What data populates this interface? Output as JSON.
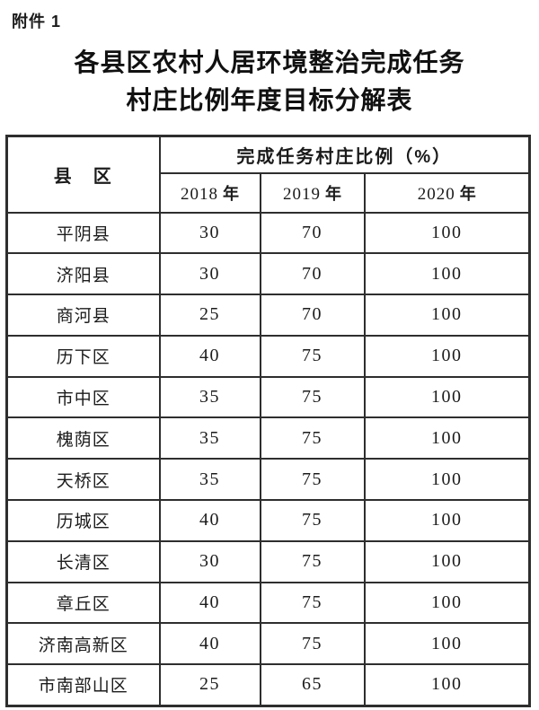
{
  "page": {
    "attachment_label": "附件 1",
    "title_line1": "各县区农村人居环境整治完成任务",
    "title_line2": "村庄比例年度目标分解表"
  },
  "table": {
    "header": {
      "county_label": "县　区",
      "ratio_label": "完成任务村庄比例（%）",
      "years": [
        {
          "num": "2018",
          "unit": "年"
        },
        {
          "num": "2019",
          "unit": "年"
        },
        {
          "num": "2020",
          "unit": "年"
        }
      ]
    },
    "rows": [
      {
        "county": "平阴县",
        "y2018": "30",
        "y2019": "70",
        "y2020": "100"
      },
      {
        "county": "济阳县",
        "y2018": "30",
        "y2019": "70",
        "y2020": "100"
      },
      {
        "county": "商河县",
        "y2018": "25",
        "y2019": "70",
        "y2020": "100"
      },
      {
        "county": "历下区",
        "y2018": "40",
        "y2019": "75",
        "y2020": "100"
      },
      {
        "county": "市中区",
        "y2018": "35",
        "y2019": "75",
        "y2020": "100"
      },
      {
        "county": "槐荫区",
        "y2018": "35",
        "y2019": "75",
        "y2020": "100"
      },
      {
        "county": "天桥区",
        "y2018": "35",
        "y2019": "75",
        "y2020": "100"
      },
      {
        "county": "历城区",
        "y2018": "40",
        "y2019": "75",
        "y2020": "100"
      },
      {
        "county": "长清区",
        "y2018": "30",
        "y2019": "75",
        "y2020": "100"
      },
      {
        "county": "章丘区",
        "y2018": "40",
        "y2019": "75",
        "y2020": "100"
      },
      {
        "county": "济南高新区",
        "y2018": "40",
        "y2019": "75",
        "y2020": "100"
      },
      {
        "county": "市南部山区",
        "y2018": "25",
        "y2019": "65",
        "y2020": "100"
      }
    ]
  },
  "colors": {
    "text": "#1b1b1b",
    "border": "#2e2e2e",
    "background": "#ffffff"
  }
}
